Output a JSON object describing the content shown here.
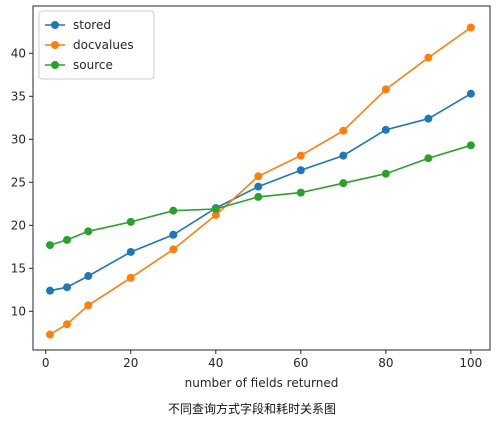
{
  "chart_data": {
    "type": "line",
    "x": [
      1,
      5,
      10,
      20,
      30,
      40,
      50,
      60,
      70,
      80,
      90,
      100
    ],
    "series": [
      {
        "name": "stored",
        "color": "#1f77b4",
        "values": [
          12.4,
          12.8,
          14.1,
          16.9,
          18.9,
          22.0,
          24.5,
          26.4,
          28.1,
          31.1,
          32.4,
          35.3
        ]
      },
      {
        "name": "docvalues",
        "color": "#ff7f0e",
        "values": [
          7.3,
          8.5,
          10.7,
          13.9,
          17.2,
          21.2,
          25.7,
          28.1,
          31.0,
          35.8,
          39.5,
          43.0
        ]
      },
      {
        "name": "source",
        "color": "#2ca02c",
        "values": [
          17.7,
          18.3,
          19.3,
          20.4,
          21.7,
          21.9,
          23.3,
          23.8,
          24.9,
          26.0,
          27.8,
          29.3
        ]
      }
    ],
    "xlabel": "number of fields returned",
    "ylabel": "",
    "xlim": [
      -3,
      104.5
    ],
    "ylim": [
      5.5,
      45.5
    ],
    "xticks": [
      0,
      20,
      40,
      60,
      80,
      100
    ],
    "yticks": [
      10,
      15,
      20,
      25,
      30,
      35,
      40
    ],
    "grid": false,
    "legend_position": "top-left",
    "caption": "不同查询方式字段和耗时关系图"
  }
}
